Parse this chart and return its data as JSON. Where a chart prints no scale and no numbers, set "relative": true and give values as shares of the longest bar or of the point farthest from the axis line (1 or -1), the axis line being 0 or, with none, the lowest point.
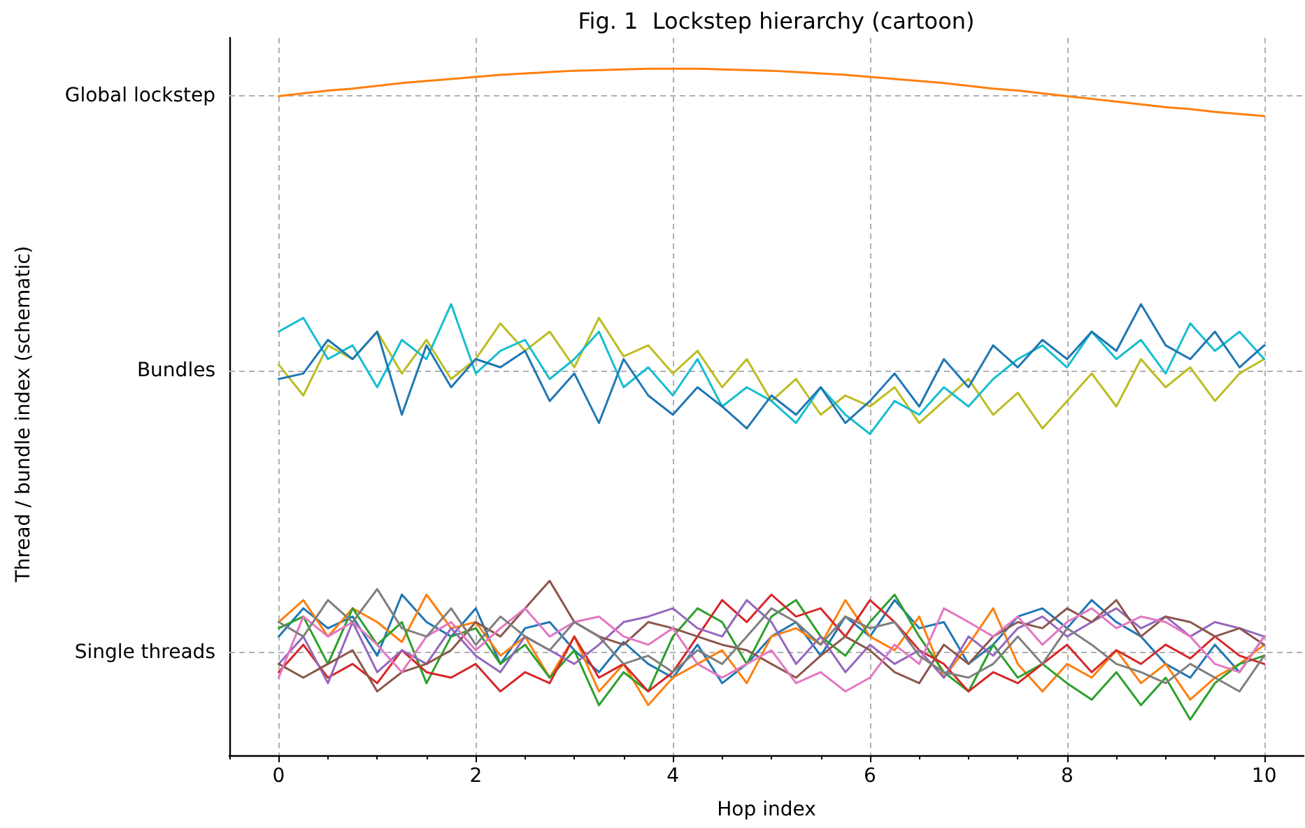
{
  "chart_data": {
    "type": "line",
    "title": "Fig. 1  Lockstep hierarchy (cartoon)",
    "xlabel": "Hop index",
    "annotations": [
      "Thread / bundle index (schematic)"
    ],
    "relative": true,
    "x": [
      0,
      0.25,
      0.5,
      0.75,
      1,
      1.25,
      1.5,
      1.75,
      2,
      2.25,
      2.5,
      2.75,
      3,
      3.25,
      3.5,
      3.75,
      4,
      4.25,
      4.5,
      4.75,
      5,
      5.25,
      5.5,
      5.75,
      6,
      6.25,
      6.5,
      6.75,
      7,
      7.25,
      7.5,
      7.75,
      8,
      8.25,
      8.5,
      8.75,
      9,
      9.25,
      9.5,
      9.75,
      10
    ],
    "xlim": [
      -0.5,
      10.4
    ],
    "xticks": [
      {
        "value": -0.5,
        "label": null
      },
      0,
      {
        "value": 0.5,
        "label": null
      },
      {
        "value": 1,
        "label": null
      },
      {
        "value": 1.5,
        "label": null
      },
      2,
      {
        "value": 2.5,
        "label": null
      },
      {
        "value": 3,
        "label": null
      },
      {
        "value": 3.5,
        "label": null
      },
      4,
      {
        "value": 4.5,
        "label": null
      },
      {
        "value": 5,
        "label": null
      },
      {
        "value": 5.5,
        "label": null
      },
      6,
      {
        "value": 6.5,
        "label": null
      },
      {
        "value": 7,
        "label": null
      },
      {
        "value": 7.5,
        "label": null
      },
      8,
      {
        "value": 8.5,
        "label": null
      },
      {
        "value": 9,
        "label": null
      },
      {
        "value": 9.5,
        "label": null
      },
      10
    ],
    "grid": "x",
    "ref_lines": [
      {
        "axis": "y",
        "value": 0.153,
        "label": "Single threads"
      },
      {
        "axis": "y",
        "value": 0.556,
        "label": "Bundles"
      },
      {
        "axis": "y",
        "value": 0.96,
        "label": "Global lockstep"
      }
    ],
    "series": [
      {
        "color": "#1f77b4",
        "values": [
          0.173,
          0.214,
          0.185,
          0.202,
          0.145,
          0.234,
          0.194,
          0.173,
          0.214,
          0.133,
          0.185,
          0.194,
          0.153,
          0.121,
          0.165,
          0.133,
          0.113,
          0.161,
          0.105,
          0.133,
          0.173,
          0.194,
          0.145,
          0.202,
          0.173,
          0.226,
          0.185,
          0.194,
          0.133,
          0.161,
          0.202,
          0.214,
          0.185,
          0.226,
          0.194,
          0.173,
          0.133,
          0.113,
          0.161,
          0.121,
          0.173
        ]
      },
      {
        "color": "#ff7f0e",
        "values": [
          0.194,
          0.226,
          0.173,
          0.214,
          0.194,
          0.165,
          0.234,
          0.185,
          0.194,
          0.145,
          0.173,
          0.113,
          0.173,
          0.093,
          0.133,
          0.073,
          0.113,
          0.133,
          0.153,
          0.105,
          0.173,
          0.185,
          0.161,
          0.226,
          0.173,
          0.153,
          0.202,
          0.113,
          0.161,
          0.214,
          0.133,
          0.093,
          0.133,
          0.113,
          0.153,
          0.105,
          0.133,
          0.081,
          0.113,
          0.133,
          0.161
        ]
      },
      {
        "color": "#2ca02c",
        "values": [
          0.185,
          0.202,
          0.133,
          0.214,
          0.161,
          0.194,
          0.105,
          0.173,
          0.185,
          0.133,
          0.161,
          0.113,
          0.153,
          0.073,
          0.121,
          0.093,
          0.173,
          0.214,
          0.194,
          0.133,
          0.202,
          0.226,
          0.173,
          0.145,
          0.194,
          0.234,
          0.173,
          0.121,
          0.093,
          0.161,
          0.113,
          0.133,
          0.105,
          0.081,
          0.121,
          0.073,
          0.113,
          0.052,
          0.105,
          0.133,
          0.145
        ]
      },
      {
        "color": "#d62728",
        "values": [
          0.121,
          0.161,
          0.113,
          0.133,
          0.105,
          0.153,
          0.121,
          0.113,
          0.133,
          0.093,
          0.121,
          0.105,
          0.173,
          0.113,
          0.133,
          0.093,
          0.121,
          0.173,
          0.226,
          0.194,
          0.234,
          0.202,
          0.214,
          0.173,
          0.226,
          0.194,
          0.153,
          0.133,
          0.093,
          0.121,
          0.105,
          0.133,
          0.161,
          0.121,
          0.153,
          0.133,
          0.161,
          0.141,
          0.173,
          0.145,
          0.133
        ]
      },
      {
        "color": "#9467bd",
        "values": [
          0.133,
          0.173,
          0.105,
          0.194,
          0.121,
          0.153,
          0.133,
          0.185,
          0.145,
          0.121,
          0.173,
          0.153,
          0.133,
          0.161,
          0.194,
          0.202,
          0.214,
          0.185,
          0.173,
          0.226,
          0.194,
          0.133,
          0.173,
          0.121,
          0.161,
          0.133,
          0.153,
          0.113,
          0.173,
          0.145,
          0.185,
          0.202,
          0.173,
          0.194,
          0.214,
          0.185,
          0.202,
          0.173,
          0.194,
          0.185,
          0.173
        ]
      },
      {
        "color": "#8c564b",
        "values": [
          0.133,
          0.113,
          0.133,
          0.153,
          0.093,
          0.121,
          0.133,
          0.153,
          0.194,
          0.173,
          0.214,
          0.254,
          0.194,
          0.173,
          0.161,
          0.194,
          0.185,
          0.173,
          0.161,
          0.153,
          0.133,
          0.113,
          0.145,
          0.173,
          0.153,
          0.121,
          0.105,
          0.161,
          0.133,
          0.173,
          0.194,
          0.185,
          0.214,
          0.194,
          0.226,
          0.173,
          0.202,
          0.194,
          0.173,
          0.185,
          0.161
        ]
      },
      {
        "color": "#e377c2",
        "values": [
          0.113,
          0.202,
          0.173,
          0.194,
          0.161,
          0.121,
          0.173,
          0.194,
          0.153,
          0.185,
          0.214,
          0.173,
          0.194,
          0.202,
          0.173,
          0.161,
          0.185,
          0.133,
          0.113,
          0.133,
          0.153,
          0.105,
          0.121,
          0.093,
          0.113,
          0.161,
          0.133,
          0.214,
          0.194,
          0.173,
          0.202,
          0.161,
          0.194,
          0.214,
          0.185,
          0.202,
          0.194,
          0.173,
          0.133,
          0.121,
          0.173
        ]
      },
      {
        "color": "#7f7f7f",
        "values": [
          0.194,
          0.173,
          0.226,
          0.194,
          0.242,
          0.185,
          0.173,
          0.214,
          0.161,
          0.202,
          0.173,
          0.153,
          0.194,
          0.173,
          0.133,
          0.145,
          0.121,
          0.153,
          0.133,
          0.173,
          0.214,
          0.194,
          0.161,
          0.202,
          0.185,
          0.194,
          0.145,
          0.121,
          0.113,
          0.133,
          0.173,
          0.133,
          0.185,
          0.161,
          0.133,
          0.121,
          0.105,
          0.133,
          0.113,
          0.093,
          0.145
        ]
      },
      {
        "color": "#bcbd22",
        "values": [
          0.569,
          0.524,
          0.597,
          0.577,
          0.617,
          0.556,
          0.605,
          0.548,
          0.577,
          0.629,
          0.589,
          0.617,
          0.565,
          0.637,
          0.581,
          0.597,
          0.556,
          0.589,
          0.536,
          0.577,
          0.516,
          0.548,
          0.496,
          0.524,
          0.508,
          0.536,
          0.484,
          0.516,
          0.548,
          0.496,
          0.528,
          0.476,
          0.516,
          0.556,
          0.508,
          0.577,
          0.536,
          0.565,
          0.516,
          0.556,
          0.577
        ]
      },
      {
        "color": "#17becf",
        "values": [
          0.617,
          0.637,
          0.577,
          0.597,
          0.536,
          0.605,
          0.577,
          0.657,
          0.556,
          0.589,
          0.605,
          0.548,
          0.577,
          0.617,
          0.536,
          0.565,
          0.524,
          0.577,
          0.508,
          0.536,
          0.516,
          0.484,
          0.536,
          0.496,
          0.468,
          0.516,
          0.496,
          0.536,
          0.508,
          0.548,
          0.577,
          0.597,
          0.565,
          0.617,
          0.577,
          0.605,
          0.556,
          0.629,
          0.589,
          0.617,
          0.577
        ]
      },
      {
        "color": "#1f77b4",
        "values": [
          0.548,
          0.556,
          0.605,
          0.577,
          0.617,
          0.496,
          0.597,
          0.536,
          0.577,
          0.565,
          0.589,
          0.516,
          0.556,
          0.484,
          0.577,
          0.524,
          0.496,
          0.536,
          0.508,
          0.476,
          0.524,
          0.496,
          0.536,
          0.484,
          0.516,
          0.556,
          0.508,
          0.577,
          0.536,
          0.597,
          0.565,
          0.605,
          0.577,
          0.617,
          0.589,
          0.657,
          0.597,
          0.577,
          0.617,
          0.565,
          0.597
        ]
      },
      {
        "color": "#ff7f0e",
        "values": [
          0.96,
          0.964,
          0.968,
          0.971,
          0.975,
          0.979,
          0.982,
          0.985,
          0.988,
          0.991,
          0.993,
          0.995,
          0.997,
          0.998,
          0.999,
          1,
          1,
          1,
          0.999,
          0.998,
          0.997,
          0.995,
          0.993,
          0.991,
          0.988,
          0.985,
          0.982,
          0.979,
          0.975,
          0.971,
          0.968,
          0.964,
          0.96,
          0.956,
          0.952,
          0.948,
          0.944,
          0.941,
          0.937,
          0.934,
          0.931
        ]
      }
    ]
  }
}
